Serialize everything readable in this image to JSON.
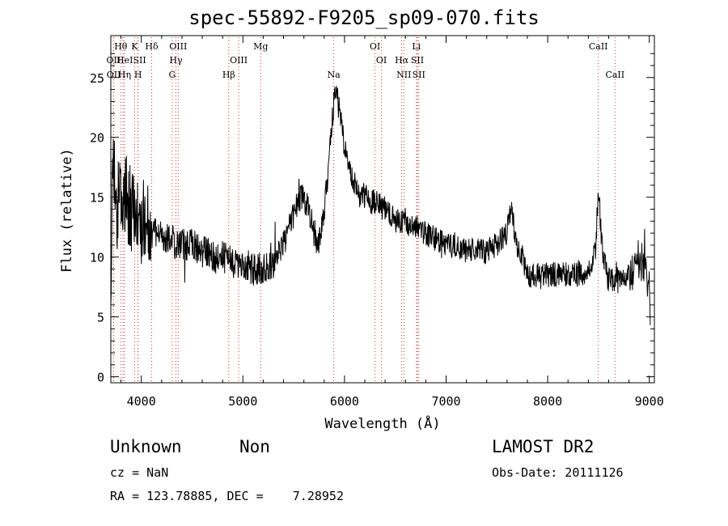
{
  "chart_data": {
    "type": "line",
    "title": "spec-55892-F9205_sp09-070.fits",
    "xlabel": "Wavelength (Å)",
    "ylabel": "Flux (relative)",
    "xlim": [
      3700,
      9050
    ],
    "ylim": [
      -0.5,
      28.5
    ],
    "xticks": [
      4000,
      5000,
      6000,
      7000,
      8000,
      9000
    ],
    "yticks": [
      0,
      5,
      10,
      15,
      20,
      25
    ],
    "grid": false,
    "line_color": "#000000",
    "marker_color": "#cc3333",
    "lines": [
      {
        "label": "OII",
        "wl": 3727,
        "tier": 2
      },
      {
        "label": "OII",
        "wl": 3729,
        "tier": 3
      },
      {
        "label": "Hθ",
        "wl": 3798,
        "tier": 1
      },
      {
        "label": "He",
        "wl": 3820,
        "tier": 2
      },
      {
        "label": "Hη",
        "wl": 3835,
        "tier": 3
      },
      {
        "label": "K",
        "wl": 3934,
        "tier": 1
      },
      {
        "label": "ISII",
        "wl": 3966,
        "tier": 2
      },
      {
        "label": "H",
        "wl": 3968,
        "tier": 3
      },
      {
        "label": "Hδ",
        "wl": 4102,
        "tier": 1
      },
      {
        "label": "OIII",
        "wl": 4363,
        "tier": 1
      },
      {
        "label": "Hγ",
        "wl": 4341,
        "tier": 2
      },
      {
        "label": "G",
        "wl": 4304,
        "tier": 3
      },
      {
        "label": "OIII",
        "wl": 4959,
        "tier": 2
      },
      {
        "label": "Hβ",
        "wl": 4861,
        "tier": 3
      },
      {
        "label": "Mg",
        "wl": 5175,
        "tier": 1
      },
      {
        "label": "Na",
        "wl": 5894,
        "tier": 3
      },
      {
        "label": "OI",
        "wl": 6300,
        "tier": 1
      },
      {
        "label": "OI",
        "wl": 6364,
        "tier": 2
      },
      {
        "label": "Hα",
        "wl": 6563,
        "tier": 2
      },
      {
        "label": "NII",
        "wl": 6584,
        "tier": 3
      },
      {
        "label": "Li",
        "wl": 6708,
        "tier": 1
      },
      {
        "label": "SII",
        "wl": 6717,
        "tier": 2
      },
      {
        "label": "SII",
        "wl": 6731,
        "tier": 3
      },
      {
        "label": "CaII",
        "wl": 8498,
        "tier": 1
      },
      {
        "label": "CaII",
        "wl": 8662,
        "tier": 3
      }
    ],
    "envelope": [
      [
        3700,
        7
      ],
      [
        3720,
        20
      ],
      [
        3750,
        13
      ],
      [
        3800,
        16
      ],
      [
        3850,
        15
      ],
      [
        3900,
        14
      ],
      [
        3950,
        13
      ],
      [
        4000,
        13
      ],
      [
        4050,
        14
      ],
      [
        4100,
        12
      ],
      [
        4200,
        12
      ],
      [
        4300,
        11.5
      ],
      [
        4400,
        11
      ],
      [
        4500,
        11
      ],
      [
        4600,
        10.5
      ],
      [
        4700,
        10
      ],
      [
        4800,
        10
      ],
      [
        4900,
        9.5
      ],
      [
        5000,
        9.5
      ],
      [
        5100,
        9
      ],
      [
        5200,
        9
      ],
      [
        5300,
        9.5
      ],
      [
        5400,
        11
      ],
      [
        5500,
        13.5
      ],
      [
        5550,
        15
      ],
      [
        5600,
        15
      ],
      [
        5650,
        14
      ],
      [
        5700,
        12
      ],
      [
        5750,
        11
      ],
      [
        5800,
        14
      ],
      [
        5850,
        18
      ],
      [
        5900,
        23.5
      ],
      [
        5920,
        24.5
      ],
      [
        5950,
        22
      ],
      [
        6000,
        19
      ],
      [
        6050,
        17
      ],
      [
        6100,
        16
      ],
      [
        6200,
        15
      ],
      [
        6300,
        14.5
      ],
      [
        6400,
        14
      ],
      [
        6500,
        13
      ],
      [
        6600,
        13
      ],
      [
        6700,
        12.5
      ],
      [
        6800,
        12
      ],
      [
        6900,
        11.5
      ],
      [
        7000,
        11
      ],
      [
        7100,
        11
      ],
      [
        7200,
        10.5
      ],
      [
        7300,
        10.5
      ],
      [
        7400,
        10.5
      ],
      [
        7500,
        11
      ],
      [
        7600,
        12
      ],
      [
        7640,
        14.5
      ],
      [
        7680,
        11.5
      ],
      [
        7750,
        10
      ],
      [
        7800,
        8.5
      ],
      [
        7900,
        8.5
      ],
      [
        8000,
        8.5
      ],
      [
        8100,
        8.5
      ],
      [
        8200,
        8.5
      ],
      [
        8300,
        8.5
      ],
      [
        8400,
        9
      ],
      [
        8470,
        10.5
      ],
      [
        8500,
        16
      ],
      [
        8530,
        11
      ],
      [
        8600,
        8
      ],
      [
        8700,
        8
      ],
      [
        8800,
        8.5
      ],
      [
        8900,
        10
      ],
      [
        8950,
        9
      ],
      [
        9000,
        8
      ],
      [
        9010,
        3
      ]
    ]
  },
  "info": {
    "class": "Unknown",
    "subclass": "Non",
    "survey": "LAMOST DR2",
    "cz": "cz = NaN",
    "obs_date": "Obs-Date: 20111126",
    "coords": "RA = 123.78885, DEC =    7.28952"
  }
}
